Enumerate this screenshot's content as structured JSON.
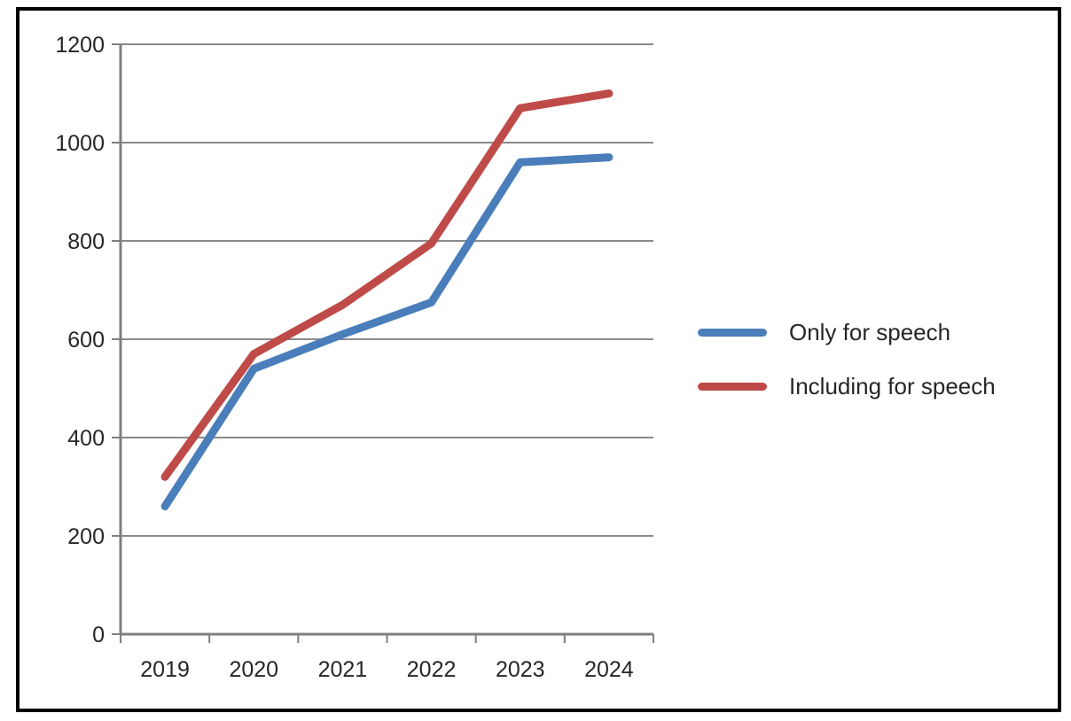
{
  "chart_data": {
    "type": "line",
    "categories": [
      "2019",
      "2020",
      "2021",
      "2022",
      "2023",
      "2024"
    ],
    "series": [
      {
        "name": "Only for speech",
        "color": "#4A7EBB",
        "values": [
          260,
          540,
          610,
          675,
          960,
          970
        ]
      },
      {
        "name": "Including for speech",
        "color": "#BE4B48",
        "values": [
          320,
          570,
          670,
          795,
          1070,
          1100
        ]
      }
    ],
    "title": "",
    "xlabel": "",
    "ylabel": "",
    "ylim": [
      0,
      1200
    ],
    "ytick_step": 200,
    "ytick_labels": [
      "0",
      "200",
      "400",
      "600",
      "800",
      "1000",
      "1200"
    ],
    "grid": true,
    "legend_position": "right"
  },
  "colors": {
    "background": "#ffffff",
    "frame_border": "#000000",
    "gridline": "#8a8a8a",
    "axis": "#7f7f7f",
    "tick_text": "#262626",
    "legend_text": "#262626"
  }
}
